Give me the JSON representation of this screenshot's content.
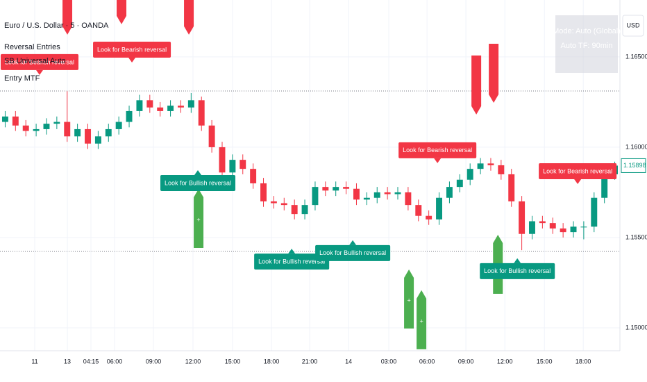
{
  "chart_data": {
    "type": "candlestick",
    "title": "Euro / U.S. Dollar · 5 · OANDA",
    "indicators": [
      "Reversal Entries",
      "SB Universal Auto",
      "Entry MTF"
    ],
    "info_box": [
      "Mode: Auto (Global)",
      "Auto TF: 90min"
    ],
    "currency": "USD",
    "up_color": "#089981",
    "down_color": "#f23645",
    "xlim": [
      0,
      60
    ],
    "ylim": [
      1.14873,
      1.16815
    ],
    "xticks": [
      {
        "value": 3.36,
        "label": "11"
      },
      {
        "value": 6.52,
        "label": "13"
      },
      {
        "value": 8.8,
        "label": "04:15"
      },
      {
        "value": 11.09,
        "label": "06:00"
      },
      {
        "value": 14.85,
        "label": "09:00"
      },
      {
        "value": 18.68,
        "label": "12:00"
      },
      {
        "value": 22.51,
        "label": "15:00"
      },
      {
        "value": 26.28,
        "label": "18:00"
      },
      {
        "value": 29.97,
        "label": "21:00"
      },
      {
        "value": 33.74,
        "label": "14"
      },
      {
        "value": 37.63,
        "label": "03:00"
      },
      {
        "value": 41.33,
        "label": "06:00"
      },
      {
        "value": 45.09,
        "label": "09:00"
      },
      {
        "value": 48.86,
        "label": "12:00"
      },
      {
        "value": 52.69,
        "label": "15:00"
      },
      {
        "value": 56.45,
        "label": "18:00"
      }
    ],
    "yticks": [
      {
        "value": 1.15,
        "label": "1.15000"
      },
      {
        "value": 1.155,
        "label": "1.15500"
      },
      {
        "value": 1.16,
        "label": "1.16000"
      },
      {
        "value": 1.165,
        "label": "1.16500"
      }
    ],
    "grid": true,
    "levels": [
      1.16311,
      1.15423
    ],
    "open": [
      1.1614,
      1.1617,
      1.1612,
      1.1609,
      1.161,
      1.1613,
      1.1614,
      1.1606,
      1.161,
      1.1602,
      1.1606,
      1.161,
      1.1614,
      1.162,
      1.1626,
      1.1622,
      1.162,
      1.1623,
      1.1622,
      1.1626,
      1.1612,
      1.16,
      1.1586,
      1.1593,
      1.1588,
      1.158,
      1.157,
      1.1569,
      1.1568,
      1.1563,
      1.1568,
      1.1578,
      1.1576,
      1.1578,
      1.1577,
      1.1571,
      1.1572,
      1.1575,
      1.1574,
      1.1575,
      1.1568,
      1.1562,
      1.156,
      1.1572,
      1.1578,
      1.1582,
      1.1588,
      1.1591,
      1.159,
      1.1585,
      1.157,
      1.1552,
      1.1559,
      1.1558,
      1.1555,
      1.1553,
      1.1556,
      1.1556,
      1.1572,
      1.1585
    ],
    "high": [
      1.162,
      1.162,
      1.1615,
      1.1613,
      1.1616,
      1.1617,
      1.1631,
      1.1613,
      1.1613,
      1.1609,
      1.1613,
      1.1617,
      1.1623,
      1.1629,
      1.1629,
      1.1625,
      1.1626,
      1.1626,
      1.163,
      1.1628,
      1.1615,
      1.1603,
      1.1596,
      1.1596,
      1.1591,
      1.1583,
      1.1573,
      1.1572,
      1.1571,
      1.1571,
      1.1581,
      1.1581,
      1.1581,
      1.1581,
      1.158,
      1.1575,
      1.1578,
      1.1578,
      1.1578,
      1.1578,
      1.1571,
      1.1565,
      1.1575,
      1.1581,
      1.1585,
      1.1591,
      1.1594,
      1.1594,
      1.1593,
      1.1588,
      1.1573,
      1.1562,
      1.1562,
      1.1561,
      1.1558,
      1.1559,
      1.1559,
      1.1575,
      1.1588,
      1.1592
    ],
    "low": [
      1.1611,
      1.1609,
      1.1606,
      1.1606,
      1.1607,
      1.161,
      1.1603,
      1.1603,
      1.1599,
      1.1599,
      1.1603,
      1.1607,
      1.1611,
      1.1617,
      1.1619,
      1.1617,
      1.1617,
      1.1619,
      1.1619,
      1.1609,
      1.1597,
      1.1583,
      1.1583,
      1.1585,
      1.1577,
      1.1567,
      1.1566,
      1.1565,
      1.156,
      1.156,
      1.1565,
      1.1573,
      1.1573,
      1.1574,
      1.1568,
      1.1568,
      1.1569,
      1.1571,
      1.1571,
      1.1565,
      1.1559,
      1.1557,
      1.1557,
      1.1569,
      1.1575,
      1.1579,
      1.1585,
      1.1587,
      1.1582,
      1.1567,
      1.1543,
      1.1549,
      1.1555,
      1.1552,
      1.155,
      1.155,
      1.1549,
      1.1553,
      1.1569,
      1.1582
    ],
    "close": [
      1.1617,
      1.1612,
      1.1609,
      1.161,
      1.1613,
      1.1614,
      1.1606,
      1.161,
      1.1602,
      1.1606,
      1.161,
      1.1614,
      1.162,
      1.1626,
      1.1622,
      1.162,
      1.1623,
      1.1622,
      1.1626,
      1.1612,
      1.16,
      1.1586,
      1.1593,
      1.1588,
      1.158,
      1.157,
      1.1569,
      1.1568,
      1.1563,
      1.1568,
      1.1578,
      1.1576,
      1.1578,
      1.1577,
      1.1571,
      1.1572,
      1.1575,
      1.1574,
      1.1575,
      1.1568,
      1.1562,
      1.156,
      1.1572,
      1.1578,
      1.1582,
      1.1588,
      1.1591,
      1.159,
      1.1585,
      1.157,
      1.1552,
      1.1559,
      1.1558,
      1.1555,
      1.1553,
      1.1556,
      1.1556,
      1.1572,
      1.1585,
      1.15898
    ],
    "annotations": [
      {
        "text": "Look for Bearish reversal",
        "kind": "bearish",
        "x": 3.83,
        "y": 1.164
      },
      {
        "text": "Look for Bearish reversal",
        "kind": "bearish",
        "x": 12.77,
        "y": 1.16469
      },
      {
        "text": "Look for Bearish reversal",
        "kind": "bearish",
        "x": 42.34,
        "y": 1.15912
      },
      {
        "text": "Look for Bearish reversal",
        "kind": "bearish",
        "x": 55.91,
        "y": 1.15796
      },
      {
        "text": "Look for Bullish reversal",
        "kind": "bullish",
        "x": 19.15,
        "y": 1.15873
      },
      {
        "text": "Look for Bullish reversal",
        "kind": "bullish",
        "x": 28.23,
        "y": 1.15438
      },
      {
        "text": "Look for Bullish reversal",
        "kind": "bullish",
        "x": 34.14,
        "y": 1.15485
      },
      {
        "text": "Look for Bullish reversal",
        "kind": "bullish",
        "x": 50.07,
        "y": 1.15385
      }
    ],
    "signals": [
      {
        "kind": "sell",
        "x": 6.52,
        "y": 1.16623
      },
      {
        "kind": "sell",
        "x": 11.76,
        "y": 1.16681
      },
      {
        "kind": "sell",
        "x": 18.28,
        "y": 1.16623
      },
      {
        "kind": "sell",
        "x": 46.1,
        "y": 1.16181
      },
      {
        "kind": "sell",
        "x": 47.78,
        "y": 1.16246
      },
      {
        "kind": "buy",
        "label": "+",
        "x": 19.22,
        "y": 1.15769
      },
      {
        "kind": "buy",
        "label": "+",
        "x": 39.58,
        "y": 1.15323
      },
      {
        "kind": "buy",
        "label": "+",
        "x": 40.79,
        "y": 1.15208
      },
      {
        "kind": "buy",
        "label": "+",
        "x": 48.19,
        "y": 1.15515
      }
    ]
  }
}
